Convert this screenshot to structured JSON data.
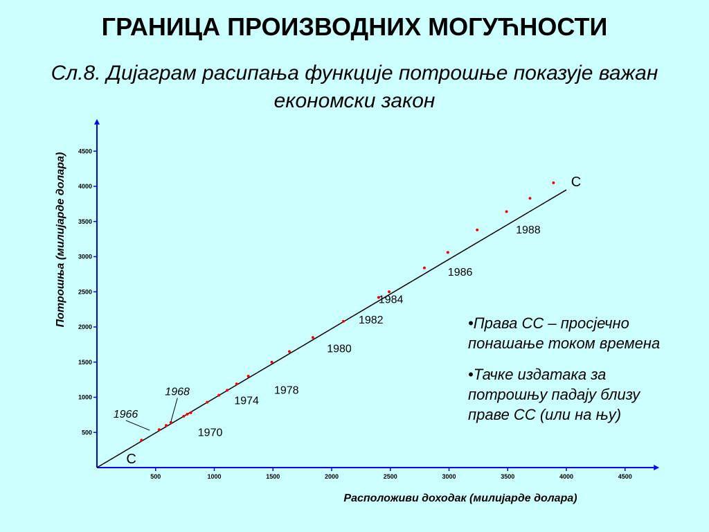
{
  "title": "ГРАНИЦА ПРОИЗВОДНИХ МОГУЋНОСТИ",
  "subtitle": "Сл.8. Дијаграм расипања функције потрошње показује важан економски закон",
  "notes": [
    "•Права CC – просјечно понашање током времена",
    "•Тачке издатака за потрошњу падају близу праве CC (или на њу)"
  ],
  "colors": {
    "background": "#ccffff",
    "axis": "#0000ff",
    "point": "#ff0000",
    "line": "#000000"
  },
  "chart_data": {
    "type": "scatter",
    "xlabel": "Расположиви доходак (милијарде долара)",
    "ylabel": "Потрошња (милијарде долара)",
    "xlim": [
      0,
      4650
    ],
    "ylim": [
      0,
      4800
    ],
    "xticks": [
      500,
      1000,
      1500,
      2000,
      2500,
      3000,
      3500,
      4000,
      4500
    ],
    "yticks": [
      500,
      1000,
      1500,
      2000,
      2500,
      3000,
      3500,
      4000,
      4500
    ],
    "line": {
      "label": "C",
      "start": [
        0,
        0
      ],
      "end": [
        4000,
        3950
      ]
    },
    "points": [
      {
        "x": 380,
        "y": 390
      },
      {
        "x": 530,
        "y": 540
      },
      {
        "x": 590,
        "y": 600
      },
      {
        "x": 630,
        "y": 640
      },
      {
        "x": 740,
        "y": 730
      },
      {
        "x": 770,
        "y": 760
      },
      {
        "x": 800,
        "y": 780
      },
      {
        "x": 940,
        "y": 930
      },
      {
        "x": 1040,
        "y": 1030
      },
      {
        "x": 1110,
        "y": 1100
      },
      {
        "x": 1190,
        "y": 1190
      },
      {
        "x": 1290,
        "y": 1300
      },
      {
        "x": 1490,
        "y": 1500
      },
      {
        "x": 1640,
        "y": 1650
      },
      {
        "x": 1840,
        "y": 1850
      },
      {
        "x": 2100,
        "y": 2080
      },
      {
        "x": 2400,
        "y": 2420
      },
      {
        "x": 2490,
        "y": 2500
      },
      {
        "x": 2790,
        "y": 2840
      },
      {
        "x": 2990,
        "y": 3060
      },
      {
        "x": 3240,
        "y": 3380
      },
      {
        "x": 3490,
        "y": 3640
      },
      {
        "x": 3690,
        "y": 3830
      },
      {
        "x": 3890,
        "y": 4050
      }
    ],
    "year_labels": [
      {
        "text": "1966",
        "x": 140,
        "y": 710,
        "italic": true,
        "leader": [
          450,
          530
        ]
      },
      {
        "text": "1968",
        "x": 580,
        "y": 1030,
        "italic": true,
        "leader": [
          630,
          650
        ]
      },
      {
        "text": "1970",
        "x": 860,
        "y": 450
      },
      {
        "text": "1974",
        "x": 1170,
        "y": 900
      },
      {
        "text": "1978",
        "x": 1510,
        "y": 1050
      },
      {
        "text": "1980",
        "x": 1960,
        "y": 1640
      },
      {
        "text": "1982",
        "x": 2230,
        "y": 2050
      },
      {
        "text": "1984",
        "x": 2400,
        "y": 2340
      },
      {
        "text": "1986",
        "x": 2990,
        "y": 2730
      },
      {
        "text": "1988",
        "x": 3570,
        "y": 3330
      }
    ],
    "end_labels": [
      {
        "text": "C",
        "x": 250,
        "y": 60
      },
      {
        "text": "C",
        "x": 4040,
        "y": 4000
      }
    ]
  }
}
